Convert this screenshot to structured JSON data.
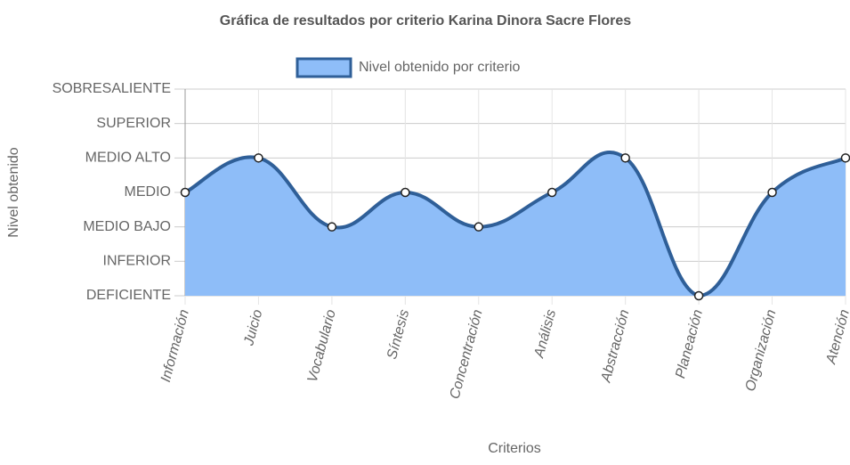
{
  "chart_data": {
    "type": "area",
    "title": "Gráfica de resultados por criterio Karina Dinora Sacre Flores",
    "x_label": "Criterios",
    "y_label": "Nivel obtenido",
    "categories": [
      "Información",
      "Juicio",
      "Vocabulario",
      "Síntesis",
      "Concentración",
      "Análisis",
      "Abstracción",
      "Planeación",
      "Organización",
      "Atención"
    ],
    "series": [
      {
        "name": "Nivel obtenido por criterio",
        "color": "#2f5f98",
        "fill": "#8ebdf8",
        "values": [
          4,
          5,
          3,
          4,
          3,
          4,
          5,
          1,
          4,
          5
        ]
      }
    ],
    "ylim": [
      1,
      7
    ],
    "yticks": [
      {
        "value": 1,
        "label": "DEFICIENTE"
      },
      {
        "value": 2,
        "label": "INFERIOR"
      },
      {
        "value": 3,
        "label": "MEDIO BAJO"
      },
      {
        "value": 4,
        "label": "MEDIO"
      },
      {
        "value": 5,
        "label": "MEDIO ALTO"
      },
      {
        "value": 6,
        "label": "SUPERIOR"
      },
      {
        "value": 7,
        "label": "SOBRESALIENTE"
      }
    ],
    "grid": true,
    "legend": "top"
  }
}
